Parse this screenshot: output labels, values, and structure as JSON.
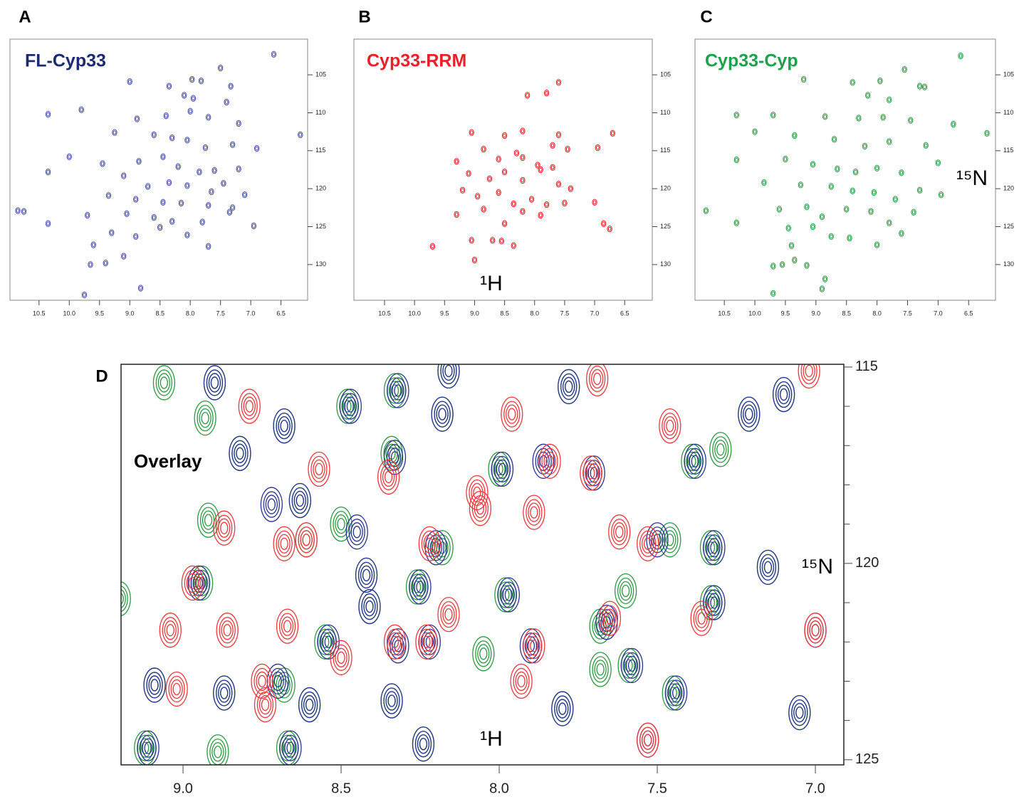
{
  "chart_data": [
    {
      "type": "scatter",
      "panel": "A",
      "title": "FL-Cyp33",
      "title_color": "#1c2a6e",
      "xlim": [
        10.98,
        6.06
      ],
      "ylim": [
        100.3,
        134.7
      ],
      "xticks": [
        10.5,
        {
          "value": 10,
          "label": "10.0"
        },
        9.5,
        {
          "value": 9,
          "label": "9.0"
        },
        8.5,
        {
          "value": 8,
          "label": "8.0"
        },
        7.5,
        {
          "value": 7,
          "label": "7.0"
        },
        6.5
      ],
      "yticks": [
        105,
        110,
        115,
        120,
        125,
        130
      ],
      "series": [
        {
          "color": "#4a4fa3",
          "x": [
            6.62,
            7.97,
            7.82,
            7.5,
            7.33,
            7.4,
            8.35,
            9.0,
            8.1,
            7.95,
            10.35,
            9.8,
            8.88,
            8.4,
            8.0,
            7.7,
            7.2,
            9.25,
            8.6,
            8.3,
            8.05,
            7.75,
            7.3,
            6.9,
            6.18,
            10.0,
            9.45,
            8.85,
            8.45,
            8.2,
            7.85,
            7.6,
            7.2,
            10.35,
            9.1,
            8.7,
            8.35,
            8.05,
            7.65,
            7.45,
            7.1,
            9.35,
            8.9,
            8.45,
            8.15,
            7.7,
            7.3,
            10.85,
            10.75,
            9.7,
            9.05,
            8.6,
            8.3,
            7.8,
            7.35,
            6.95,
            10.35,
            9.3,
            8.9,
            8.5,
            8.05,
            7.7,
            9.6,
            9.1,
            9.65,
            9.4,
            8.82,
            9.75
          ],
          "y": [
            102.3,
            105.6,
            105.8,
            104.1,
            106.5,
            108.6,
            106.5,
            105.9,
            107.7,
            108.1,
            110.2,
            109.6,
            110.8,
            110.4,
            109.8,
            110.6,
            111.4,
            112.6,
            112.9,
            113.3,
            113.6,
            114.6,
            114.2,
            114.7,
            112.9,
            115.8,
            116.7,
            116.4,
            115.8,
            117.1,
            117.8,
            117.6,
            117.4,
            117.8,
            118.3,
            119.7,
            119.2,
            119.6,
            120.4,
            119.3,
            120.8,
            120.9,
            121.4,
            121.8,
            121.9,
            122.2,
            122.5,
            122.9,
            123.0,
            123.5,
            123.3,
            123.8,
            124.3,
            124.4,
            123.1,
            124.9,
            124.6,
            125.8,
            126.3,
            125.1,
            126.1,
            127.6,
            127.4,
            128.9,
            130.0,
            129.8,
            133.1,
            134.0
          ]
        }
      ]
    },
    {
      "type": "scatter",
      "panel": "B",
      "title": "Cyp33-RRM",
      "title_color": "#e8202a",
      "x_label": "¹H",
      "xlim": [
        11.01,
        6.04
      ],
      "ylim": [
        100.3,
        134.7
      ],
      "xticks": [
        10.5,
        {
          "value": 10,
          "label": "10.0"
        },
        9.5,
        {
          "value": 9,
          "label": "9.0"
        },
        8.5,
        {
          "value": 8,
          "label": "8.0"
        },
        7.5,
        {
          "value": 7,
          "label": "7.0"
        },
        6.5
      ],
      "yticks": [
        105,
        110,
        115,
        120,
        125,
        130
      ],
      "series": [
        {
          "color": "#e8202a",
          "x": [
            7.6,
            7.8,
            8.12,
            6.7,
            9.05,
            8.5,
            8.2,
            7.6,
            9.3,
            8.85,
            8.6,
            8.3,
            7.95,
            7.7,
            7.45,
            6.95,
            9.1,
            8.75,
            8.5,
            8.2,
            7.9,
            7.7,
            7.6,
            7.4,
            9.2,
            8.95,
            8.6,
            8.35,
            8.05,
            7.8,
            7.5,
            7.0,
            9.3,
            8.85,
            8.5,
            8.2,
            7.9,
            6.85,
            6.75,
            9.05,
            8.7,
            8.55,
            8.35,
            9.7,
            9.0,
            8.2
          ],
          "y": [
            106.0,
            107.4,
            107.7,
            112.7,
            112.6,
            113.0,
            112.4,
            112.9,
            116.4,
            114.8,
            116.1,
            115.3,
            116.9,
            114.3,
            114.8,
            114.6,
            118.0,
            118.7,
            117.8,
            118.9,
            117.5,
            117.2,
            119.4,
            120.0,
            120.2,
            121.0,
            120.5,
            122.0,
            121.4,
            122.1,
            121.9,
            121.8,
            123.4,
            122.7,
            124.6,
            123.0,
            123.5,
            124.6,
            125.3,
            126.8,
            126.8,
            126.9,
            127.5,
            127.6,
            129.4,
            115.9
          ]
        }
      ]
    },
    {
      "type": "scatter",
      "panel": "C",
      "title": "Cyp33-Cyp",
      "title_color": "#1fa04a",
      "y_label": "¹⁵N",
      "xlim": [
        10.98,
        6.06
      ],
      "ylim": [
        100.3,
        134.7
      ],
      "xticks": [
        10.5,
        {
          "value": 10,
          "label": "10.0"
        },
        9.5,
        {
          "value": 9,
          "label": "9.0"
        },
        8.5,
        {
          "value": 8,
          "label": "8.0"
        },
        7.5,
        {
          "value": 7,
          "label": "7.0"
        },
        6.5
      ],
      "yticks": [
        105,
        110,
        115,
        120,
        125,
        130
      ],
      "series": [
        {
          "color": "#2e9a45",
          "x": [
            6.63,
            7.55,
            7.3,
            7.22,
            8.4,
            7.95,
            8.15,
            7.8,
            9.2,
            10.3,
            9.7,
            8.85,
            8.3,
            7.9,
            7.45,
            6.75,
            6.2,
            10.0,
            9.35,
            8.7,
            8.2,
            7.8,
            7.2,
            10.3,
            9.5,
            9.05,
            8.65,
            8.35,
            8.0,
            7.6,
            7.0,
            9.85,
            9.25,
            8.75,
            8.4,
            8.05,
            7.7,
            7.3,
            6.95,
            10.8,
            10.3,
            9.6,
            9.15,
            8.9,
            8.5,
            8.1,
            7.8,
            7.4,
            9.45,
            9.05,
            8.75,
            8.45,
            8.0,
            7.6,
            9.4,
            9.7,
            9.55,
            9.35,
            9.15,
            8.85,
            9.7,
            8.9
          ],
          "y": [
            102.5,
            104.3,
            106.5,
            106.6,
            106.0,
            105.8,
            107.7,
            108.3,
            105.6,
            110.3,
            110.3,
            110.5,
            110.7,
            110.6,
            111.0,
            111.5,
            112.7,
            112.5,
            113.0,
            113.5,
            114.4,
            113.8,
            114.3,
            116.2,
            116.1,
            116.8,
            117.4,
            117.8,
            117.3,
            117.9,
            116.6,
            119.2,
            119.5,
            119.7,
            120.3,
            120.5,
            121.4,
            120.2,
            120.8,
            122.9,
            124.5,
            122.7,
            122.4,
            123.7,
            122.7,
            123.0,
            124.5,
            123.1,
            125.2,
            125.0,
            126.3,
            126.5,
            127.4,
            125.9,
            127.5,
            130.2,
            130.0,
            129.4,
            130.1,
            131.9,
            133.8,
            133.2
          ]
        }
      ]
    },
    {
      "type": "scatter",
      "panel": "D",
      "title": "Overlay",
      "title_color": "#000000",
      "x_label": "¹H",
      "y_label": "¹⁵N",
      "xlim": [
        9.196,
        6.91
      ],
      "ylim": [
        114.93,
        125.13
      ],
      "xticks": [
        {
          "value": 9,
          "label": "9.0"
        },
        8.5,
        {
          "value": 8,
          "label": "8.0"
        },
        7.5,
        {
          "value": 7,
          "label": "7.0"
        }
      ],
      "yticks": [
        115,
        120,
        125
      ],
      "yminor": [
        116,
        117,
        118,
        119,
        121,
        122,
        123,
        124
      ],
      "series": [
        {
          "color": "#2e9a45",
          "x": [
            9.06,
            8.9,
            8.93,
            8.68,
            8.48,
            8.33,
            8.16,
            8.18,
            7.78,
            7.39,
            7.3,
            7.21,
            7.1,
            8.82,
            8.34,
            8.0,
            8.92,
            8.63,
            8.5,
            8.61,
            8.18,
            7.46,
            7.33,
            7.15,
            8.94,
            8.42,
            8.26,
            7.98,
            8.41,
            7.6,
            7.33,
            7.68,
            8.55,
            8.05,
            7.68,
            7.59,
            7.45,
            9.09,
            8.87,
            8.68,
            8.6,
            8.34,
            7.8,
            7.05,
            9.12,
            8.67,
            8.24,
            9.2,
            8.89
          ],
          "y": [
            115.4,
            115.4,
            116.3,
            116.5,
            116.0,
            115.6,
            115.1,
            116.2,
            115.5,
            117.4,
            117.1,
            116.2,
            115.7,
            117.2,
            117.2,
            117.6,
            118.9,
            118.4,
            119.0,
            119.4,
            119.6,
            119.4,
            119.6,
            120.1,
            120.5,
            120.3,
            120.6,
            120.8,
            121.1,
            120.7,
            121.0,
            121.6,
            122.0,
            122.3,
            122.7,
            122.6,
            123.3,
            123.1,
            123.3,
            123.1,
            123.6,
            123.5,
            123.7,
            123.8,
            124.7,
            124.7,
            124.6,
            120.9,
            124.8
          ]
        },
        {
          "color": "#2b3590",
          "x": [
            8.9,
            8.68,
            8.47,
            8.32,
            8.16,
            8.18,
            7.78,
            7.38,
            7.21,
            7.1,
            8.82,
            8.33,
            7.99,
            7.86,
            7.7,
            8.72,
            8.63,
            8.45,
            8.2,
            7.5,
            7.32,
            7.15,
            8.42,
            8.25,
            7.97,
            8.41,
            7.32,
            7.66,
            8.54,
            8.32,
            8.22,
            7.9,
            7.58,
            7.44,
            9.09,
            8.87,
            8.7,
            8.6,
            8.34,
            7.8,
            7.05,
            9.11,
            8.66,
            8.24,
            7.53,
            7.0,
            8.95
          ],
          "y": [
            115.4,
            116.5,
            116.0,
            115.6,
            115.1,
            116.2,
            115.5,
            117.4,
            116.2,
            115.7,
            117.2,
            117.3,
            117.6,
            117.4,
            117.7,
            118.5,
            118.4,
            119.2,
            119.6,
            119.4,
            119.6,
            120.1,
            120.3,
            120.6,
            120.8,
            121.1,
            121.0,
            121.5,
            122.0,
            122.1,
            122.0,
            122.1,
            122.6,
            123.3,
            123.1,
            123.3,
            123.0,
            123.6,
            123.5,
            123.7,
            123.8,
            124.7,
            124.7,
            124.6,
            124.5,
            121.7,
            120.5
          ]
        },
        {
          "color": "#ec3a3f",
          "x": [
            7.96,
            7.69,
            7.46,
            7.02,
            8.79,
            8.35,
            7.84,
            7.71,
            8.07,
            7.89,
            8.06,
            8.87,
            8.68,
            8.61,
            8.22,
            7.62,
            7.53,
            8.97,
            8.16,
            7.36,
            7.65,
            7.0,
            9.04,
            8.86,
            8.67,
            8.5,
            8.33,
            8.23,
            7.89,
            7.93,
            9.02,
            8.75,
            8.74,
            7.53,
            8.57
          ],
          "y": [
            116.2,
            115.3,
            116.5,
            115.1,
            116.0,
            117.8,
            117.4,
            117.7,
            118.2,
            118.7,
            118.6,
            119.1,
            119.5,
            119.4,
            119.5,
            119.2,
            119.5,
            120.5,
            121.3,
            121.4,
            121.4,
            121.7,
            121.7,
            121.7,
            121.6,
            122.4,
            122.0,
            122.0,
            122.1,
            123.0,
            123.2,
            123.0,
            123.6,
            124.5,
            117.6
          ]
        }
      ]
    }
  ]
}
